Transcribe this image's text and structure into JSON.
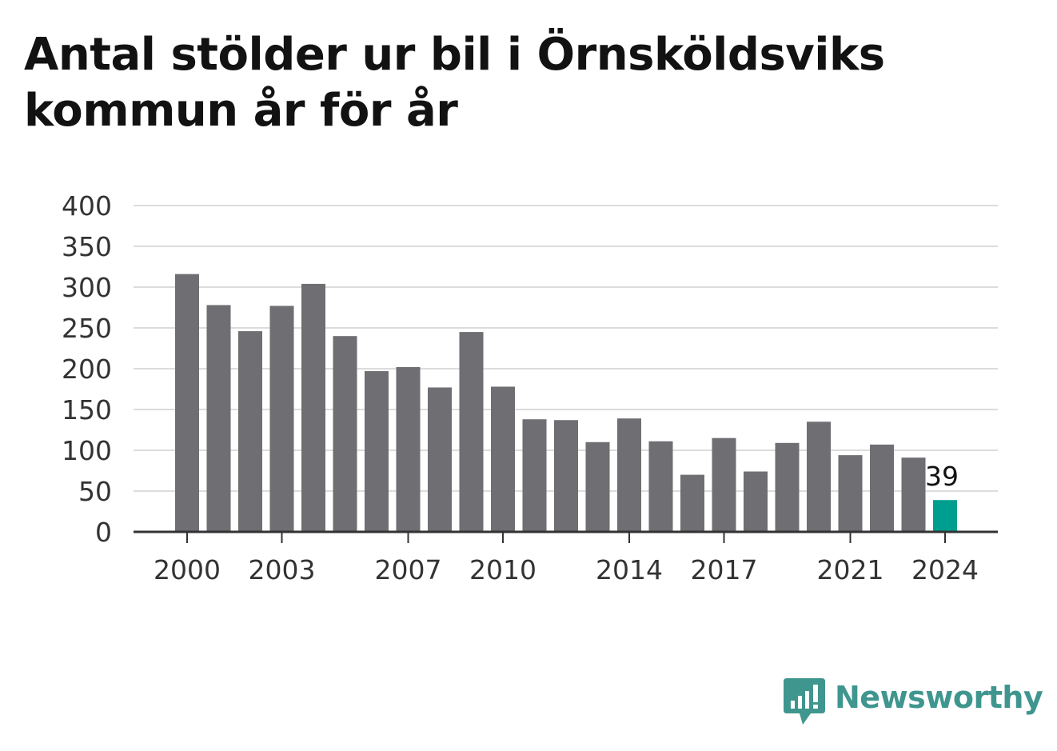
{
  "title": "Antal stölder ur bil i Örnsköldsviks kommun år för år",
  "colors": {
    "bar": "#6e6e73",
    "highlight": "#009e8e",
    "grid": "#dcdcdc",
    "axis": "#333333",
    "brand": "#3f968f"
  },
  "brand": {
    "name": "Newsworthy",
    "icon": "newsworthy-logo-icon"
  },
  "chart_data": {
    "type": "bar",
    "title": "Antal stölder ur bil i Örnsköldsviks kommun år för år",
    "xlabel": "",
    "ylabel": "",
    "categories": [
      "2000",
      "2001",
      "2002",
      "2003",
      "2004",
      "2005",
      "2006",
      "2007",
      "2008",
      "2009",
      "2010",
      "2011",
      "2012",
      "2013",
      "2014",
      "2015",
      "2016",
      "2017",
      "2018",
      "2019",
      "2020",
      "2021",
      "2022",
      "2023",
      "2024"
    ],
    "values": [
      316,
      278,
      246,
      277,
      304,
      240,
      197,
      202,
      177,
      245,
      178,
      138,
      137,
      110,
      139,
      111,
      70,
      115,
      74,
      109,
      135,
      94,
      107,
      91,
      39
    ],
    "x_tick_labels": [
      "2000",
      "2003",
      "2007",
      "2010",
      "2014",
      "2017",
      "2021",
      "2024"
    ],
    "y_ticks": [
      0,
      50,
      100,
      150,
      200,
      250,
      300,
      350,
      400
    ],
    "ylim": [
      0,
      400
    ],
    "highlight_category": "2024",
    "data_labels": [
      {
        "category": "2024",
        "text": "39"
      }
    ],
    "grid": true,
    "legend": "none"
  }
}
